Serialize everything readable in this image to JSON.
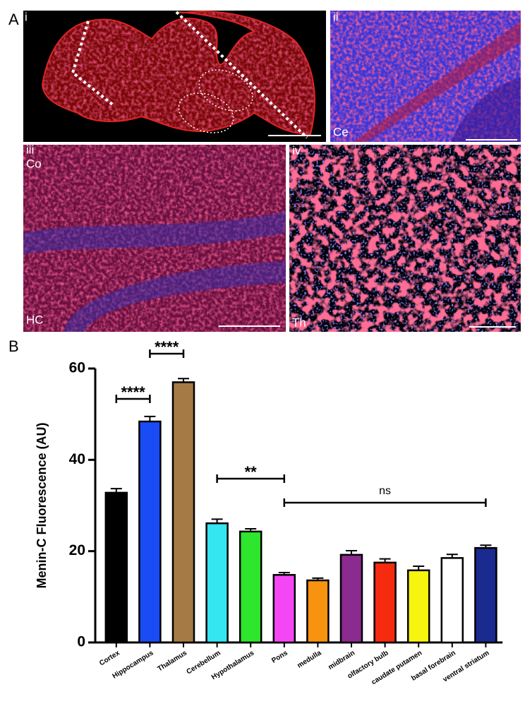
{
  "figure": {
    "panel_a": {
      "label": "A",
      "subpanels": [
        {
          "label": "i"
        },
        {
          "label": "ii",
          "region": "Ce"
        },
        {
          "label": "iii",
          "regions": [
            "Co",
            "HC"
          ]
        },
        {
          "label": "iv",
          "region": "Th"
        }
      ]
    },
    "panel_b": {
      "label": "B"
    }
  },
  "chart_data": {
    "type": "bar",
    "y_label": "Menin-C Fluorescence (AU)",
    "categories": [
      "Cortex",
      "Hippocampus",
      "Thalamus",
      "Cerebellum",
      "Hypothalamus",
      "Pons",
      "medulla",
      "midbrain",
      "olfactory bulb",
      "caudate putamen",
      "basal forebrain",
      "ventral striatum"
    ],
    "values": [
      32.8,
      48.4,
      57.0,
      26.1,
      24.3,
      14.8,
      13.6,
      19.2,
      17.5,
      15.8,
      18.5,
      20.7
    ],
    "errors": [
      0.9,
      1.1,
      0.8,
      0.9,
      0.6,
      0.5,
      0.5,
      0.9,
      0.8,
      0.9,
      0.8,
      0.6
    ],
    "colors": [
      "#000000",
      "#1a4cf5",
      "#a57a45",
      "#33e6f0",
      "#2ee62e",
      "#f546f5",
      "#f7930f",
      "#8b2a8f",
      "#f52a0f",
      "#f5f50f",
      "#ffffff",
      "#1a2a8f"
    ],
    "ylim": [
      0,
      60
    ],
    "yticks": [
      0,
      20,
      40,
      60
    ],
    "annotations": [
      {
        "text": "****",
        "from": 0,
        "to": 1
      },
      {
        "text": "****",
        "from": 1,
        "to": 2
      },
      {
        "text": "**",
        "from": 3,
        "to": 5
      },
      {
        "text": "ns",
        "from": 5,
        "to": 11
      }
    ]
  }
}
